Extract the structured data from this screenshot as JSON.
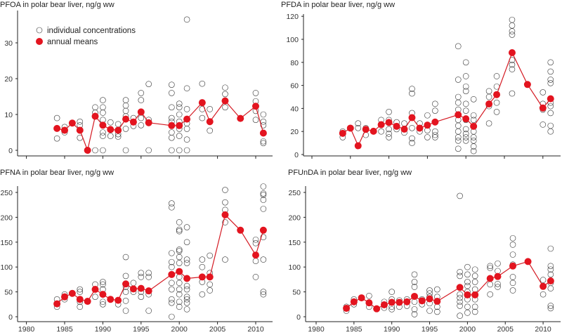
{
  "chart_data": [
    {
      "type": "scatter+line",
      "title": "PFOA in polar bear liver, ng/g ww",
      "yticks": [
        0,
        10,
        20,
        30
      ],
      "xticks": [
        1980,
        1985,
        1990,
        1995,
        2000,
        2005,
        2010
      ],
      "show_xtick_labels": false,
      "legend": {
        "placement": "top-left",
        "individual": "individual concentrations",
        "mean": "annual means"
      },
      "means": {
        "years": [
          1984,
          1985,
          1986,
          1987,
          1988,
          1989,
          1990,
          1991,
          1992,
          1993,
          1994,
          1995,
          1996,
          1999,
          2000,
          2001,
          2003,
          2004,
          2006,
          2008,
          2010,
          2011
        ],
        "values": [
          6.1,
          5.6,
          7.6,
          5.6,
          0,
          9.5,
          7.0,
          5.8,
          5.6,
          8.7,
          7.9,
          10.7,
          7.7,
          6.9,
          6.9,
          8.7,
          13.3,
          8.0,
          13.8,
          8.9,
          12.3,
          4.8
        ]
      },
      "individual": {
        "1984": [
          9,
          3.3
        ],
        "1985": [
          6.5,
          5
        ],
        "1987": [
          8,
          7,
          3.5
        ],
        "1989": [
          12,
          10.5,
          0
        ],
        "1990": [
          14,
          12,
          10.5,
          8.5,
          5,
          4,
          0
        ],
        "1991": [
          7.8,
          4
        ],
        "1992": [
          7.3,
          4.5,
          3.8
        ],
        "1993": [
          14,
          12.5,
          11,
          9.5,
          6,
          0
        ],
        "1994": [
          9,
          6.8
        ],
        "1995": [
          16,
          14,
          9,
          7
        ],
        "1996": [
          18.5,
          8.5,
          0
        ],
        "1999": [
          18.3,
          16,
          12,
          9,
          8,
          5,
          3.5,
          0
        ],
        "2000": [
          13,
          12,
          10,
          8,
          6,
          4,
          0
        ],
        "2001": [
          36.5,
          17.3,
          11.5,
          7.5,
          6,
          3,
          0
        ],
        "2003": [
          18.6,
          11.5,
          9
        ],
        "2004": [
          11.5,
          5.5
        ],
        "2006": [
          17.5,
          15.7,
          12
        ],
        "2010": [
          16,
          13.7,
          11,
          8.5
        ],
        "2011": [
          10,
          8,
          7,
          2.5,
          2
        ]
      }
    },
    {
      "type": "scatter+line",
      "title": "PFDA in polar bear liver, ng/g ww",
      "yticks": [
        0,
        20,
        40,
        60,
        80,
        100,
        120
      ],
      "xticks": [
        1980,
        1985,
        1990,
        1995,
        2000,
        2005,
        2010
      ],
      "show_xtick_labels": false,
      "means": {
        "years": [
          1984,
          1985,
          1986,
          1987,
          1988,
          1989,
          1990,
          1991,
          1992,
          1993,
          1994,
          1995,
          1996,
          1999,
          2000,
          2001,
          2003,
          2004,
          2006,
          2008,
          2010,
          2011
        ],
        "values": [
          18.4,
          22.9,
          7.6,
          21.8,
          20.2,
          25.9,
          27.8,
          24.5,
          22,
          32,
          22.9,
          25.5,
          28.2,
          34.5,
          31,
          24.5,
          43.9,
          52,
          88.4,
          60.8,
          40.4,
          48.4
        ]
      },
      "individual": {
        "1984": [
          20,
          15
        ],
        "1986": [
          27,
          23
        ],
        "1987": [
          23,
          17
        ],
        "1989": [
          30,
          20
        ],
        "1990": [
          37,
          30,
          22,
          18,
          15
        ],
        "1991": [
          28,
          22
        ],
        "1992": [
          27,
          19
        ],
        "1993": [
          57,
          53,
          36,
          23,
          14,
          10
        ],
        "1994": [
          27,
          20
        ],
        "1995": [
          34,
          21,
          15
        ],
        "1996": [
          44,
          38,
          20,
          17,
          15
        ],
        "1999": [
          94,
          65,
          50,
          45,
          39,
          30,
          25,
          20,
          15,
          12,
          5
        ],
        "2000": [
          80,
          68,
          59,
          55,
          44,
          38,
          30,
          22,
          18,
          15,
          12
        ],
        "2001": [
          48,
          34,
          30,
          20,
          15,
          12,
          7,
          3
        ],
        "2003": [
          55,
          50,
          42,
          27
        ],
        "2004": [
          68,
          59,
          45,
          37
        ],
        "2006": [
          117,
          112,
          107,
          104,
          82,
          78,
          74,
          53
        ],
        "2010": [
          54,
          44,
          39,
          26
        ],
        "2011": [
          80,
          72,
          65,
          62,
          45,
          42,
          36,
          25,
          20
        ]
      }
    },
    {
      "type": "scatter+line",
      "title": "PFNA in polar bear liver, ng/g ww",
      "yticks": [
        0,
        50,
        100,
        150,
        200,
        250
      ],
      "xticks": [
        1980,
        1985,
        1990,
        1995,
        2000,
        2005,
        2010
      ],
      "show_xtick_labels": true,
      "means": {
        "years": [
          1984,
          1985,
          1986,
          1987,
          1988,
          1989,
          1990,
          1991,
          1992,
          1993,
          1994,
          1995,
          1996,
          1999,
          2000,
          2001,
          2003,
          2004,
          2006,
          2008,
          2010,
          2011
        ],
        "values": [
          26,
          40,
          47,
          35,
          31,
          55,
          45,
          35,
          33,
          66,
          56,
          57,
          52,
          85,
          91,
          77,
          80,
          80,
          205,
          174,
          124,
          174
        ]
      },
      "individual": {
        "1984": [
          35,
          20
        ],
        "1985": [
          45,
          35
        ],
        "1987": [
          55,
          50,
          30,
          20
        ],
        "1989": [
          65,
          40
        ],
        "1990": [
          70,
          65,
          55,
          30,
          25
        ],
        "1992": [
          25
        ],
        "1993": [
          120,
          82,
          60,
          50,
          32,
          12
        ],
        "1994": [
          68,
          50
        ],
        "1995": [
          88,
          80,
          50,
          40
        ],
        "1996": [
          88,
          80,
          45,
          12
        ],
        "1999": [
          228,
          220,
          128,
          110,
          100,
          68,
          55,
          35,
          28,
          0
        ],
        "2000": [
          190,
          175,
          172,
          135,
          132,
          120,
          108,
          80,
          68,
          55,
          45,
          30,
          20
        ],
        "2001": [
          180,
          150,
          115,
          108,
          62,
          55,
          40,
          35,
          28,
          15
        ],
        "2003": [
          115,
          100,
          70,
          45
        ],
        "2004": [
          123,
          88,
          65,
          53
        ],
        "2006": [
          255,
          230,
          215,
          190,
          115
        ],
        "2010": [
          155,
          148,
          112,
          80
        ],
        "2011": [
          262,
          248,
          245,
          235,
          217,
          160,
          115,
          50,
          45
        ]
      }
    },
    {
      "type": "scatter+line",
      "title": "PFUnDA in polar bear liver, ng/g ww",
      "yticks": [
        0,
        50,
        100,
        150,
        200,
        250
      ],
      "xticks": [
        1980,
        1985,
        1990,
        1995,
        2000,
        2005,
        2010
      ],
      "show_xtick_labels": true,
      "means": {
        "years": [
          1984,
          1985,
          1986,
          1987,
          1988,
          1989,
          1990,
          1991,
          1992,
          1993,
          1994,
          1995,
          1996,
          1999,
          2000,
          2001,
          2003,
          2004,
          2006,
          2008,
          2010,
          2011
        ],
        "values": [
          17,
          30,
          38,
          28,
          16,
          24,
          29,
          29,
          30,
          41,
          32,
          36,
          31,
          59,
          44,
          44,
          77,
          81,
          102,
          111,
          61,
          72
        ]
      },
      "individual": {
        "1984": [
          20,
          12
        ],
        "1985": [
          35,
          25
        ],
        "1987": [
          42,
          20
        ],
        "1989": [
          30,
          18
        ],
        "1990": [
          50,
          35,
          20,
          15
        ],
        "1991": [
          33,
          20
        ],
        "1992": [
          35,
          22
        ],
        "1993": [
          85,
          70,
          60,
          30,
          15,
          5
        ],
        "1994": [
          35,
          25
        ],
        "1995": [
          53,
          47,
          40,
          27,
          12
        ],
        "1996": [
          55,
          40,
          20,
          10
        ],
        "1999": [
          243,
          90,
          82,
          45,
          38,
          30,
          22,
          2
        ],
        "2000": [
          100,
          85,
          70,
          62,
          50,
          35,
          20,
          8
        ],
        "2001": [
          95,
          82,
          70,
          55,
          35,
          20,
          10
        ],
        "2003": [
          102,
          98,
          65,
          45
        ],
        "2004": [
          107,
          92,
          66,
          60
        ],
        "2006": [
          158,
          145,
          125,
          105,
          80,
          68,
          53
        ],
        "2010": [
          74,
          45
        ],
        "2011": [
          137,
          102,
          95,
          85,
          68,
          57,
          22,
          17
        ]
      }
    }
  ],
  "colors": {
    "mean": "#e3141f",
    "mean_line": "#d41a23",
    "individual_stroke": "#333333",
    "axis": "#222222"
  }
}
